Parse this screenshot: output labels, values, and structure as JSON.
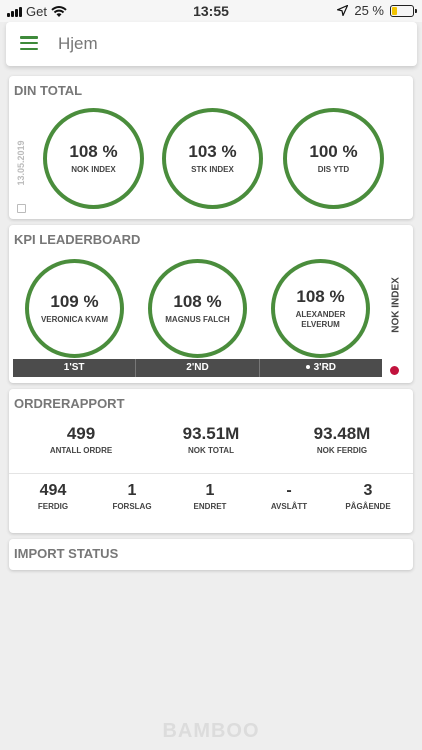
{
  "status_bar": {
    "carrier": "Get",
    "time": "13:55",
    "battery": "25 %",
    "battery_level": 0.25,
    "icons": [
      "signal-icon",
      "wifi-icon",
      "location-icon",
      "battery-icon"
    ]
  },
  "header": {
    "title": "Hjem",
    "menu_icon": "hamburger-menu-icon"
  },
  "din_total": {
    "title": "DIN TOTAL",
    "date": "13.05.2019",
    "rings": [
      {
        "value": "108 %",
        "label": "NOK INDEX"
      },
      {
        "value": "103 %",
        "label": "STK INDEX"
      },
      {
        "value": "100 %",
        "label": "DIS YTD"
      }
    ]
  },
  "leaderboard": {
    "title": "KPI LEADERBOARD",
    "side_label": "NOK INDEX",
    "rings": [
      {
        "value": "109 %",
        "label": "VERONICA KVAM"
      },
      {
        "value": "108 %",
        "label": "MAGNUS FALCH"
      },
      {
        "value": "108 %",
        "label": "ALEXANDER ELVERUM"
      }
    ],
    "ranks": [
      "1'ST",
      "2'ND",
      "3'RD"
    ]
  },
  "ordrerapport": {
    "title": "ORDRERAPPORT",
    "top": [
      {
        "value": "499",
        "label": "ANTALL ORDRE"
      },
      {
        "value": "93.51M",
        "label": "NOK TOTAL"
      },
      {
        "value": "93.48M",
        "label": "NOK FERDIG"
      }
    ],
    "bottom": [
      {
        "value": "494",
        "label": "FERDIG"
      },
      {
        "value": "1",
        "label": "FORSLAG"
      },
      {
        "value": "1",
        "label": "ENDRET"
      },
      {
        "value": "-",
        "label": "AVSLÅTT"
      },
      {
        "value": "3",
        "label": "PÅGÅENDE"
      }
    ]
  },
  "import_status": {
    "title": "IMPORT STATUS"
  },
  "footer": {
    "brand": "BAMBOO"
  },
  "colors": {
    "accent_green": "#4a8d3c",
    "rank_bar": "#4c4c4c",
    "indicator_red": "#c1123d"
  }
}
